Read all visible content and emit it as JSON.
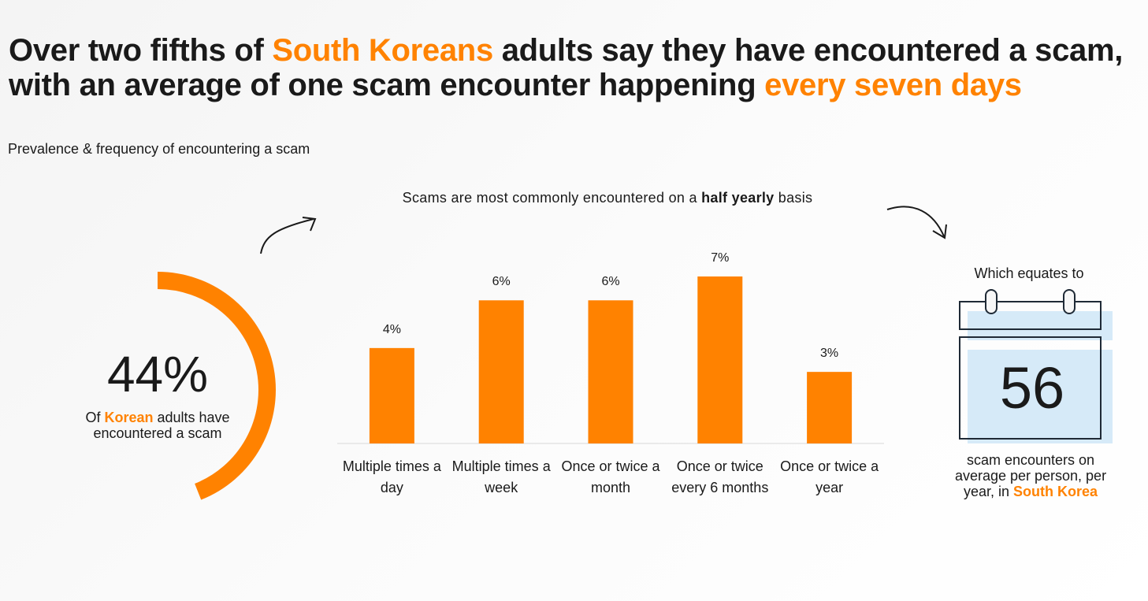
{
  "header": {
    "title": [
      {
        "text": "Over two fifths of ",
        "emphasis": false
      },
      {
        "text": "South Koreans",
        "emphasis": true
      },
      {
        "text": " adults say they have encountered a scam, with an average of one scam encounter happening ",
        "emphasis": false
      },
      {
        "text": "every seven days",
        "emphasis": true
      }
    ],
    "subtitle": "Prevalence & frequency of encountering a scam"
  },
  "donut": {
    "value": 44,
    "label": "44%",
    "color": "#ff8200",
    "caption": [
      {
        "text": "Of ",
        "emphasis": false
      },
      {
        "text": "Korean",
        "emphasis": true
      },
      {
        "text": " adults have encountered a scam",
        "emphasis": false
      }
    ]
  },
  "chart_data": {
    "type": "bar",
    "title": [
      {
        "text": "Scams are most commonly encountered on a ",
        "emphasis": false
      },
      {
        "text": "half yearly",
        "emphasis": true
      },
      {
        "text": " basis",
        "emphasis": false
      }
    ],
    "categories": [
      "Multiple times a day",
      "Multiple times a week",
      "Once or twice a month",
      "Once or twice every 6 months",
      "Once or twice a year"
    ],
    "values": [
      4,
      6,
      6,
      7,
      3
    ],
    "value_labels": [
      "4%",
      "6%",
      "6%",
      "7%",
      "3%"
    ],
    "color": "#ff8200"
  },
  "callout": {
    "lead": "Which equates to",
    "value": 56,
    "caption": [
      {
        "text": "scam encounters on average per person, per year, in ",
        "emphasis": false
      },
      {
        "text": "South Korea",
        "emphasis": true
      }
    ]
  }
}
